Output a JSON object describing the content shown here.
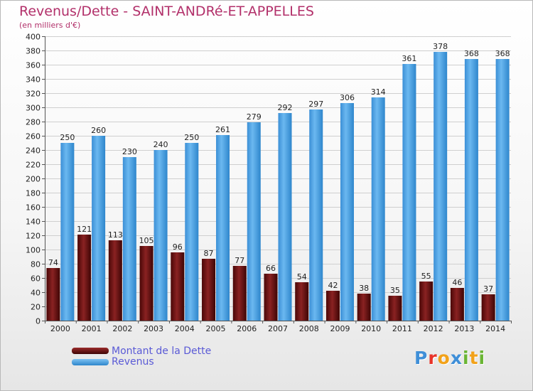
{
  "title": "Revenus/Dette - SAINT-ANDRé-ET-APPELLES",
  "subtitle": "(en milliers d'€)",
  "logo": {
    "text": "Proxiti",
    "letters": [
      {
        "ch": "P",
        "color": "#3f8fd8"
      },
      {
        "ch": "r",
        "color": "#e8342a"
      },
      {
        "ch": "o",
        "color": "#f2a21a"
      },
      {
        "ch": "x",
        "color": "#3f8fd8"
      },
      {
        "ch": "i",
        "color": "#6ab534"
      },
      {
        "ch": "t",
        "color": "#f2a21a"
      },
      {
        "ch": "i",
        "color": "#6ab534"
      }
    ]
  },
  "colors": {
    "dette": "#6e1212",
    "revenus": "#4aa2e6",
    "title": "#b2306a",
    "legend_text": "#5a5ad6"
  },
  "legend": {
    "position": "bottom-left",
    "items": [
      {
        "label": "Montant de la Dette",
        "series": "dette"
      },
      {
        "label": "Revenus",
        "series": "revenus"
      }
    ]
  },
  "chart_data": {
    "type": "bar",
    "title": "Revenus/Dette - SAINT-ANDRé-ET-APPELLES",
    "subtitle": "(en milliers d'€)",
    "categories": [
      "2000",
      "2001",
      "2002",
      "2003",
      "2004",
      "2005",
      "2006",
      "2007",
      "2008",
      "2009",
      "2010",
      "2011",
      "2012",
      "2013",
      "2014"
    ],
    "series": [
      {
        "name": "Montant de la Dette",
        "values": [
          74,
          121,
          113,
          105,
          96,
          87,
          77,
          66,
          54,
          42,
          38,
          35,
          55,
          46,
          37
        ]
      },
      {
        "name": "Revenus",
        "values": [
          250,
          260,
          230,
          240,
          250,
          261,
          279,
          292,
          297,
          306,
          314,
          361,
          378,
          368,
          368
        ]
      }
    ],
    "ylim": [
      0,
      400
    ],
    "ytick_step": 20,
    "grid": true,
    "xlabel": "",
    "ylabel": ""
  }
}
